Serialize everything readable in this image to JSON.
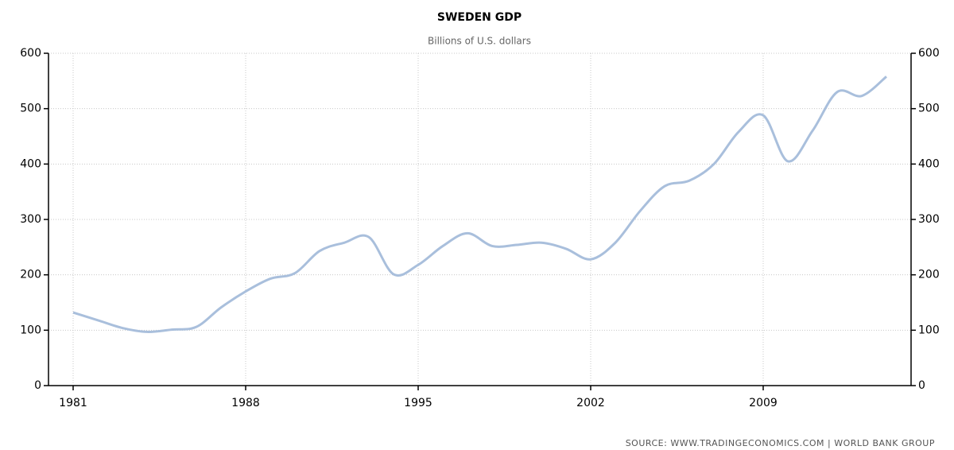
{
  "chart_data": {
    "type": "line",
    "title": "SWEDEN GDP",
    "subtitle": "Billions of U.S. dollars",
    "source": "SOURCE: WWW.TRADINGECONOMICS.COM | WORLD BANK GROUP",
    "x": [
      1981,
      1982,
      1983,
      1984,
      1985,
      1986,
      1987,
      1988,
      1989,
      1990,
      1991,
      1992,
      1993,
      1994,
      1995,
      1996,
      1997,
      1998,
      1999,
      2000,
      2001,
      2002,
      2003,
      2004,
      2005,
      2006,
      2007,
      2008,
      2009,
      2010,
      2011,
      2012,
      2013,
      2014
    ],
    "series": [
      {
        "name": "GDP",
        "color": "#a9bfdc",
        "values": [
          132,
          118,
          104,
          97,
          101,
          106,
          141,
          170,
          193,
          203,
          243,
          258,
          268,
          201,
          218,
          252,
          275,
          252,
          254,
          258,
          247,
          228,
          258,
          315,
          360,
          370,
          400,
          458,
          488,
          405,
          460,
          530,
          523,
          558
        ]
      }
    ],
    "xlim": [
      1980,
      2015
    ],
    "xticks": [
      1981,
      1988,
      1995,
      2002,
      2009
    ],
    "ylim": [
      0,
      600
    ],
    "yticks": [
      0,
      100,
      200,
      300,
      400,
      500,
      600
    ],
    "grid": true
  }
}
